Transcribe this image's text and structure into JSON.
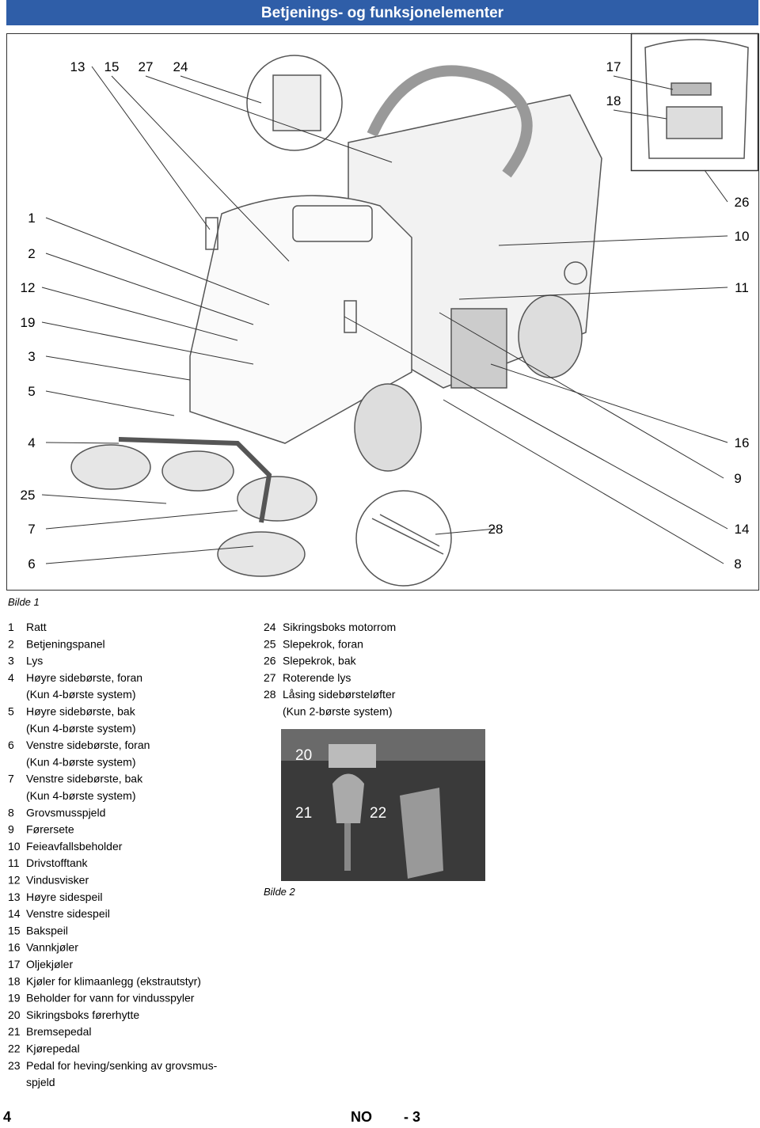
{
  "header": {
    "title": "Betjenings- og funksjonelementer"
  },
  "figure1": {
    "callouts": [
      "13",
      "15",
      "27",
      "24",
      "17",
      "18",
      "1",
      "2",
      "12",
      "19",
      "3",
      "5",
      "4",
      "25",
      "7",
      "6",
      "26",
      "10",
      "11",
      "16",
      "9",
      "14",
      "8",
      "28"
    ],
    "caption": "Bilde 1"
  },
  "legend": {
    "left": [
      {
        "num": "1",
        "lines": [
          "Ratt"
        ]
      },
      {
        "num": "2",
        "lines": [
          "Betjeningspanel"
        ]
      },
      {
        "num": "3",
        "lines": [
          "Lys"
        ]
      },
      {
        "num": "4",
        "lines": [
          "Høyre sidebørste, foran",
          "(Kun 4-børste system)"
        ]
      },
      {
        "num": "5",
        "lines": [
          "Høyre sidebørste, bak",
          "(Kun 4-børste system)"
        ]
      },
      {
        "num": "6",
        "lines": [
          "Venstre sidebørste, foran",
          "(Kun 4-børste system)"
        ]
      },
      {
        "num": "7",
        "lines": [
          "Venstre sidebørste, bak",
          "(Kun 4-børste system)"
        ]
      },
      {
        "num": "8",
        "lines": [
          "Grovsmusspjeld"
        ]
      },
      {
        "num": "9",
        "lines": [
          "Førersete"
        ]
      },
      {
        "num": "10",
        "lines": [
          "Feieavfallsbeholder"
        ]
      },
      {
        "num": "11",
        "lines": [
          "Drivstofftank"
        ]
      },
      {
        "num": "12",
        "lines": [
          "Vindusvisker"
        ]
      },
      {
        "num": "13",
        "lines": [
          "Høyre sidespeil"
        ]
      },
      {
        "num": "14",
        "lines": [
          "Venstre sidespeil"
        ]
      },
      {
        "num": "15",
        "lines": [
          "Bakspeil"
        ]
      },
      {
        "num": "16",
        "lines": [
          "Vannkjøler"
        ]
      },
      {
        "num": "17",
        "lines": [
          "Oljekjøler"
        ]
      },
      {
        "num": "18",
        "lines": [
          "Kjøler for klimaanlegg (ekstrautstyr)"
        ]
      },
      {
        "num": "19",
        "lines": [
          "Beholder for vann for vindusspyler"
        ]
      },
      {
        "num": "20",
        "lines": [
          "Sikringsboks førerhytte"
        ]
      },
      {
        "num": "21",
        "lines": [
          "Bremsepedal"
        ]
      },
      {
        "num": "22",
        "lines": [
          "Kjørepedal"
        ]
      },
      {
        "num": "23",
        "lines": [
          "Pedal for heving/senking av grovsmus-",
          "spjeld"
        ]
      }
    ],
    "right": [
      {
        "num": "24",
        "lines": [
          "Sikringsboks motorrom"
        ]
      },
      {
        "num": "25",
        "lines": [
          "Slepekrok, foran"
        ]
      },
      {
        "num": "26",
        "lines": [
          "Slepekrok, bak"
        ]
      },
      {
        "num": "27",
        "lines": [
          "Roterende lys"
        ]
      },
      {
        "num": "28",
        "lines": [
          "Låsing sidebørsteløfter",
          "(Kun 2-børste system)"
        ]
      }
    ]
  },
  "figure2": {
    "labels": [
      "20",
      "21",
      "22"
    ],
    "caption": "Bilde 2"
  },
  "footer": {
    "page": "4",
    "lang": "NO",
    "pagenum": "- 3"
  }
}
